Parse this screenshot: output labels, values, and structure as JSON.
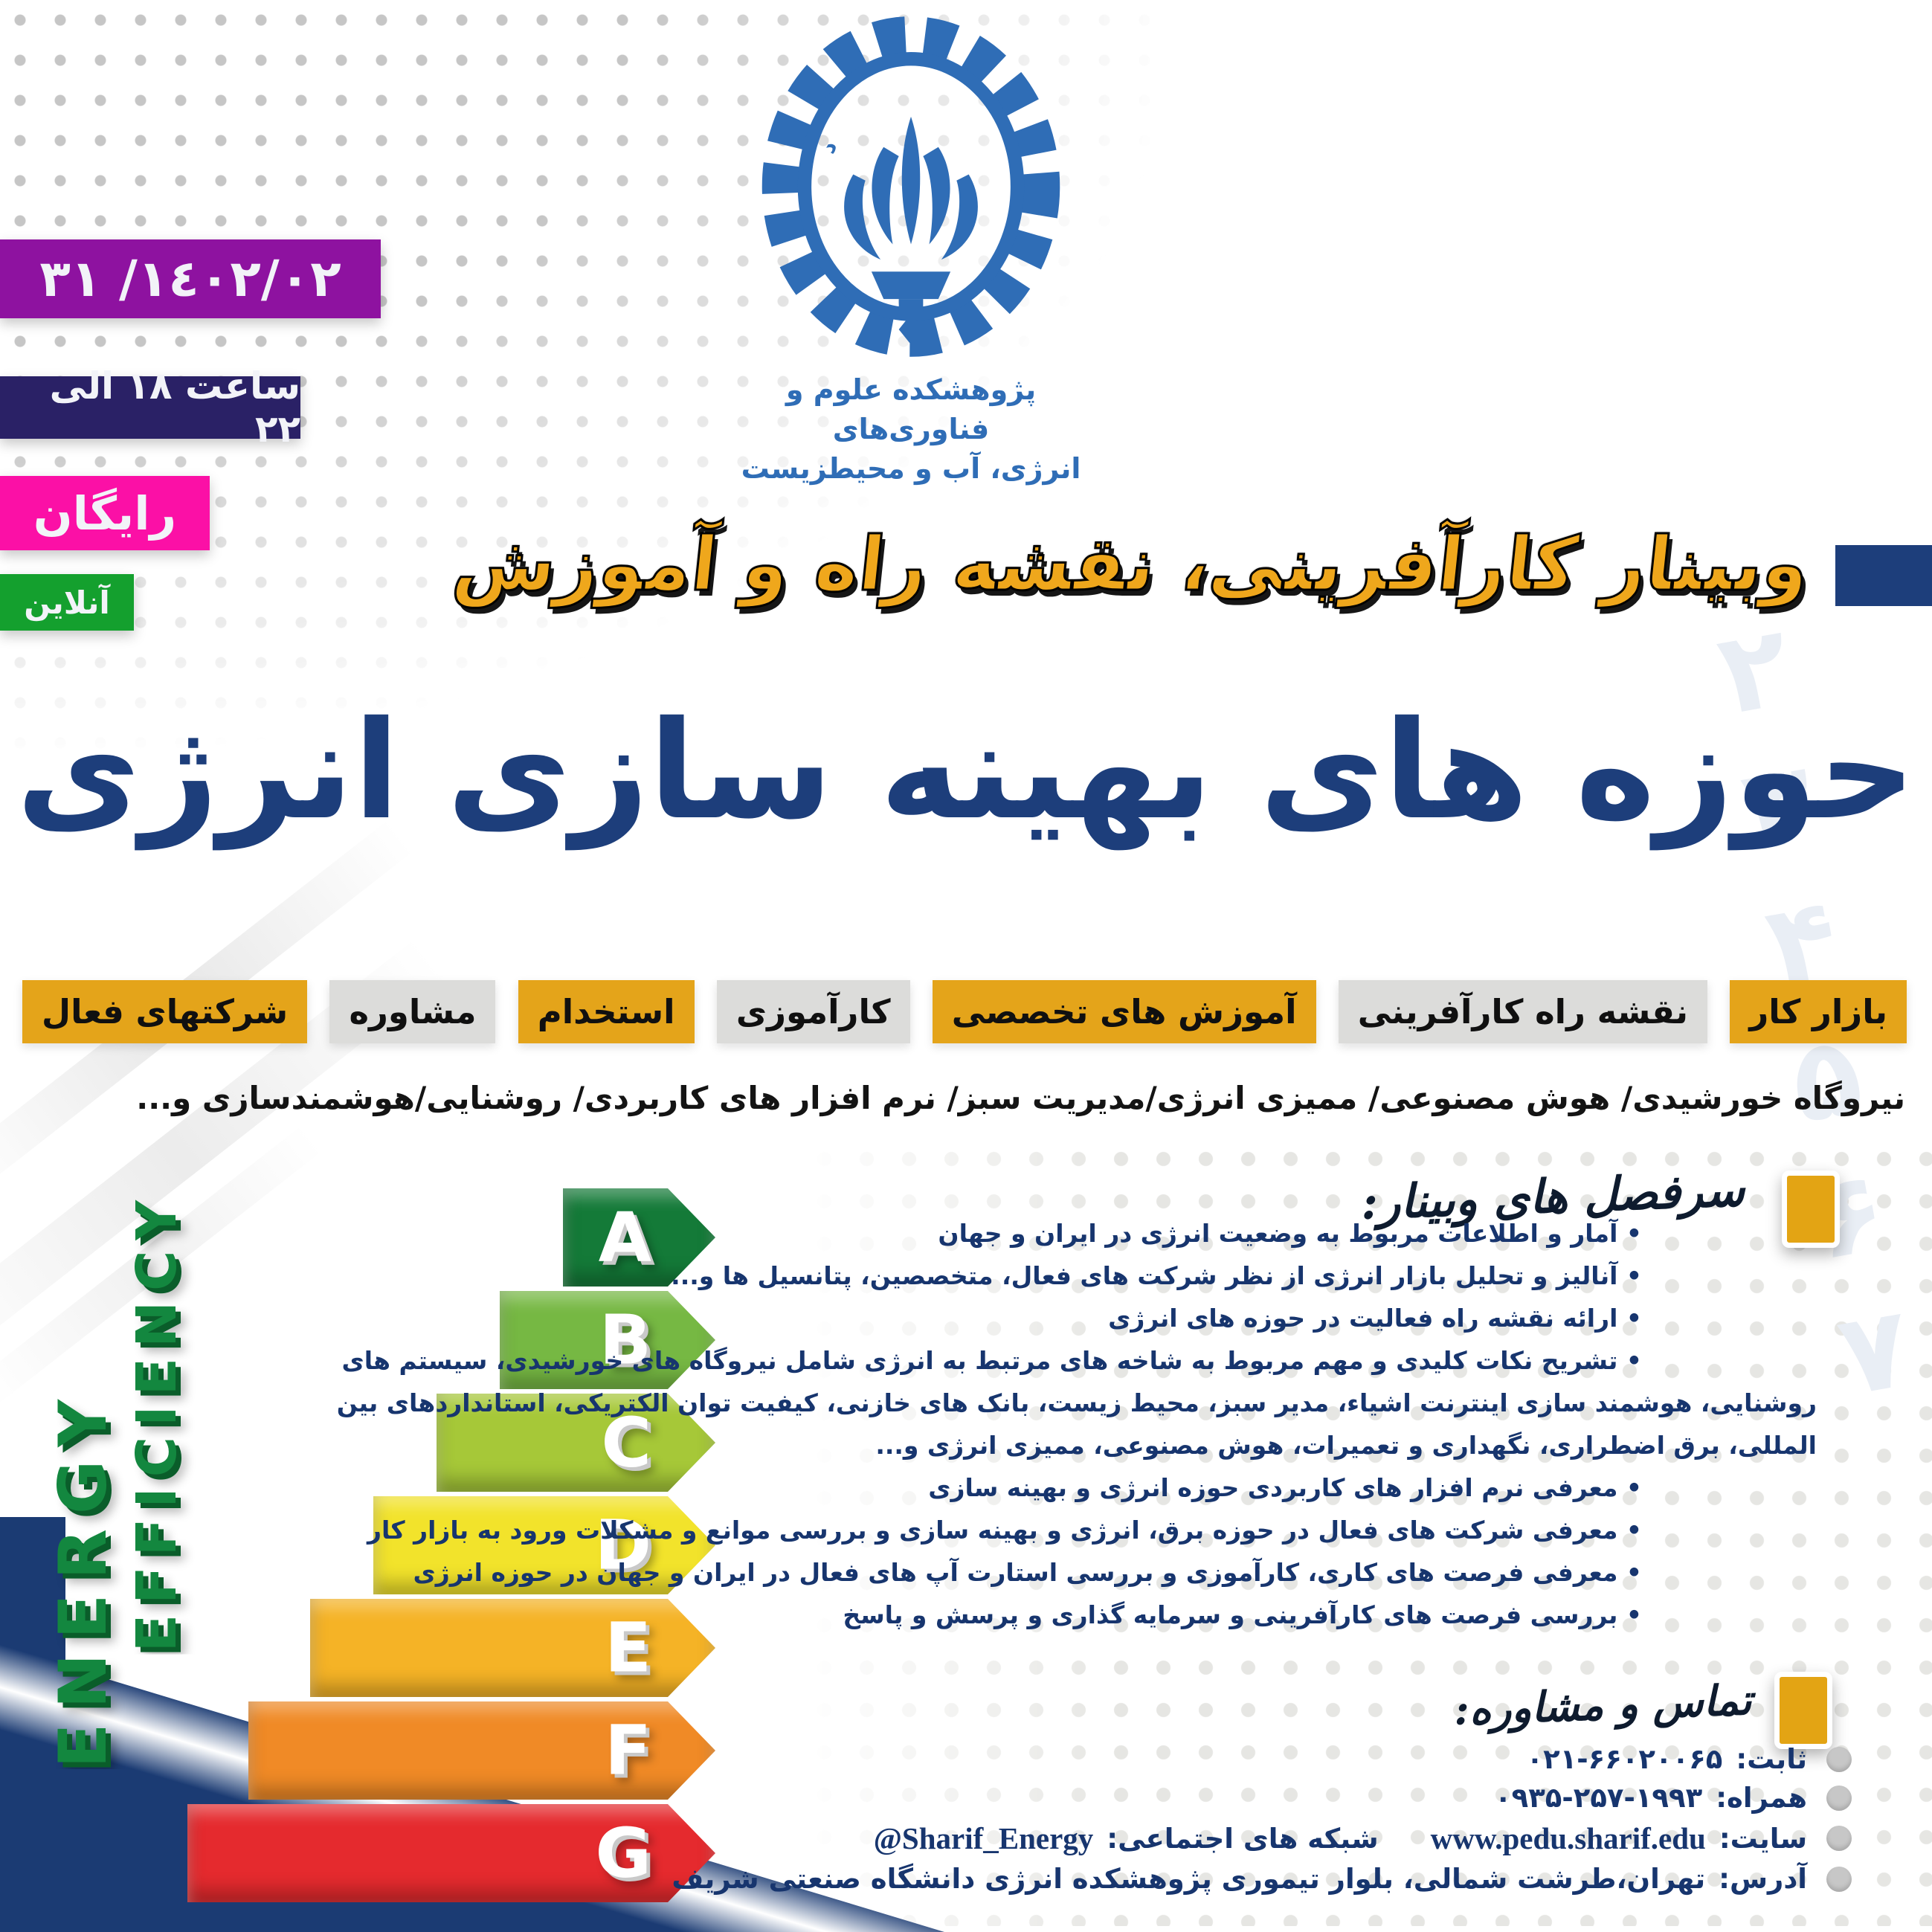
{
  "badges": {
    "date": "١٤٠٢/٠٢/ ٣١",
    "time": "ساعت ۱۸ الی ۲۲",
    "free": "رایگان",
    "online": "آنلاین"
  },
  "logo": {
    "seal_text": "دانشگاه صنعتی شریف",
    "org_line1": "پژوهشکده علوم و فناوری‌های",
    "org_line2": "انرژی، آب و محیطزیست"
  },
  "headline": {
    "kicker": "وبینار کارآفرینی، نقشه راه و آموزش",
    "main": "حوزه های بهینه سازی انرژی"
  },
  "tags": [
    {
      "label": "بازار کار",
      "style": "yellow"
    },
    {
      "label": "نقشه راه کارآفرینی",
      "style": "gray"
    },
    {
      "label": "آموزش های تخصصی",
      "style": "yellow"
    },
    {
      "label": "کارآموزی",
      "style": "gray"
    },
    {
      "label": "استخدام",
      "style": "yellow"
    },
    {
      "label": "مشاوره",
      "style": "gray"
    },
    {
      "label": "شرکتهای فعال",
      "style": "yellow"
    }
  ],
  "subtitle": "نیروگاه خورشیدی/ هوش مصنوعی/ ممیزی انرژی/مدیریت سبز/ نرم افزار های کاربردی/ روشنایی/هوشمندسازی و...",
  "topics_heading": "سرفصل های وبینار:",
  "topics": [
    "آمار و اطلاعات مربوط به وضعیت انرژی در ایران و جهان",
    "آنالیز و تحلیل بازار انرژی از نظر شرکت های فعال، متخصصین، پتانسیل ها و...",
    "ارائه نقشه راه فعالیت در حوزه های انرژی",
    "تشریح نکات کلیدی و مهم مربوط به شاخه های مرتبط به انرژی شامل نیروگاه های خورشیدی، سیستم های روشنایی، هوشمند سازی اینترنت اشیاء، مدیر سبز، محیط زیست، بانک های خازنی، کیفیت توان الکتریکی، استانداردهای بین المللی، برق اضطراری، نگهداری و تعمیرات، هوش مصنوعی، ممیزی انرژی و...",
    "معرفی نرم افزار های کاربردی حوزه انرژی و بهینه سازی",
    "معرفی شرکت های فعال در حوزه برق، انرژی و بهینه سازی و بررسی موانع و مشکلات ورود به بازار کار",
    "معرفی فرصت های کاری، کارآموزی و بررسی استارت آپ های فعال در ایران و جهان در حوزه انرژی",
    "بررسی فرصت های کارآفرینی و سرمایه گذاری و پرسش و پاسخ"
  ],
  "contact_heading": "تماس و مشاوره:",
  "contact": {
    "landline_label": "ثابت:",
    "landline": "۰۲۱-۶۶۰۲۰۰۶۵",
    "mobile_label": "همراه:",
    "mobile": "۰۹۳۵-۲۵۷-۱۹۹۳",
    "site_label": "سایت:",
    "site": "www.pedu.sharif.edu",
    "social_label": "شبکه های اجتماعی:",
    "social": "@Sharif_Energy",
    "address_label": "آدرس:",
    "address": "تهران،طرشت شمالی، بلوار تیموری پژوهشکده انرژی دانشگاه صنعتی شریف"
  },
  "energy_label": {
    "vertical_text": [
      "ENERGY",
      "EFFICIENCY"
    ],
    "grades": [
      {
        "letter": "A",
        "color": "#147a38"
      },
      {
        "letter": "B",
        "color": "#76b843"
      },
      {
        "letter": "C",
        "color": "#a6c838"
      },
      {
        "letter": "D",
        "color": "#f2e32b"
      },
      {
        "letter": "E",
        "color": "#f5b326"
      },
      {
        "letter": "F",
        "color": "#f08a26"
      },
      {
        "letter": "G",
        "color": "#e52a2e"
      }
    ]
  },
  "watermark_digits": [
    "۲",
    "۳",
    "۴",
    "۵",
    "۶",
    "۷"
  ],
  "colors": {
    "purple": "#8e12a0",
    "time_navy": "#2a2166",
    "pink": "#fb10a6",
    "green": "#14a02e",
    "gold": "#e4a41a",
    "tag_gray": "#dcdcda",
    "title_blue": "#1d3e7b",
    "text_navy": "#17356e",
    "logo_blue": "#2f6db6",
    "wedge_navy": "#1b3b73"
  }
}
